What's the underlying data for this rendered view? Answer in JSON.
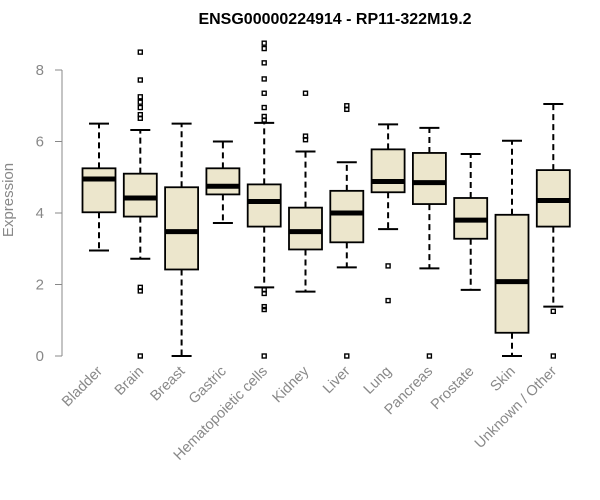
{
  "chart_data": {
    "type": "box",
    "title": "ENSG00000224914 - RP11-322M19.2",
    "ylabel": "Expression",
    "xlabel": "",
    "ylim": [
      0,
      8.8
    ],
    "yticks": [
      0,
      2,
      4,
      6,
      8
    ],
    "grid": false,
    "box_fill": "#ece6cc",
    "categories": [
      "Bladder",
      "Brain",
      "Breast",
      "Gastric",
      "Hematopoietic cells",
      "Kidney",
      "Liver",
      "Lung",
      "Pancreas",
      "Prostate",
      "Skin",
      "Unknown / Other"
    ],
    "boxes": [
      {
        "min": 2.95,
        "q1": 4.02,
        "median": 4.95,
        "q3": 5.25,
        "max": 6.5,
        "outliers": []
      },
      {
        "min": 2.72,
        "q1": 3.9,
        "median": 4.42,
        "q3": 5.1,
        "max": 6.32,
        "outliers": [
          0.0,
          1.82,
          1.92,
          6.65,
          6.75,
          6.95,
          7.1,
          7.25,
          7.72,
          8.5
        ]
      },
      {
        "min": 0.0,
        "q1": 2.42,
        "median": 3.48,
        "q3": 4.72,
        "max": 6.5,
        "outliers": []
      },
      {
        "min": 3.72,
        "q1": 4.52,
        "median": 4.75,
        "q3": 5.25,
        "max": 6.0,
        "outliers": []
      },
      {
        "min": 1.92,
        "q1": 3.62,
        "median": 4.32,
        "q3": 4.8,
        "max": 6.52,
        "outliers": [
          0.0,
          1.3,
          1.38,
          1.75,
          1.85,
          6.6,
          6.7,
          6.95,
          7.35,
          7.75,
          8.2,
          8.6,
          8.75
        ]
      },
      {
        "min": 1.8,
        "q1": 2.98,
        "median": 3.48,
        "q3": 4.15,
        "max": 5.72,
        "outliers": [
          6.05,
          6.15,
          7.35
        ]
      },
      {
        "min": 2.48,
        "q1": 3.18,
        "median": 4.0,
        "q3": 4.62,
        "max": 5.42,
        "outliers": [
          0.0,
          6.9,
          7.0
        ]
      },
      {
        "min": 3.55,
        "q1": 4.58,
        "median": 4.88,
        "q3": 5.78,
        "max": 6.48,
        "outliers": [
          1.55,
          2.52
        ]
      },
      {
        "min": 2.45,
        "q1": 4.25,
        "median": 4.85,
        "q3": 5.68,
        "max": 6.38,
        "outliers": [
          0.0
        ]
      },
      {
        "min": 1.85,
        "q1": 3.28,
        "median": 3.8,
        "q3": 4.42,
        "max": 5.65,
        "outliers": []
      },
      {
        "min": 0.0,
        "q1": 0.65,
        "median": 2.08,
        "q3": 3.95,
        "max": 6.02,
        "outliers": []
      },
      {
        "min": 1.38,
        "q1": 3.62,
        "median": 4.35,
        "q3": 5.2,
        "max": 7.05,
        "outliers": [
          0.0,
          1.25
        ]
      }
    ]
  }
}
